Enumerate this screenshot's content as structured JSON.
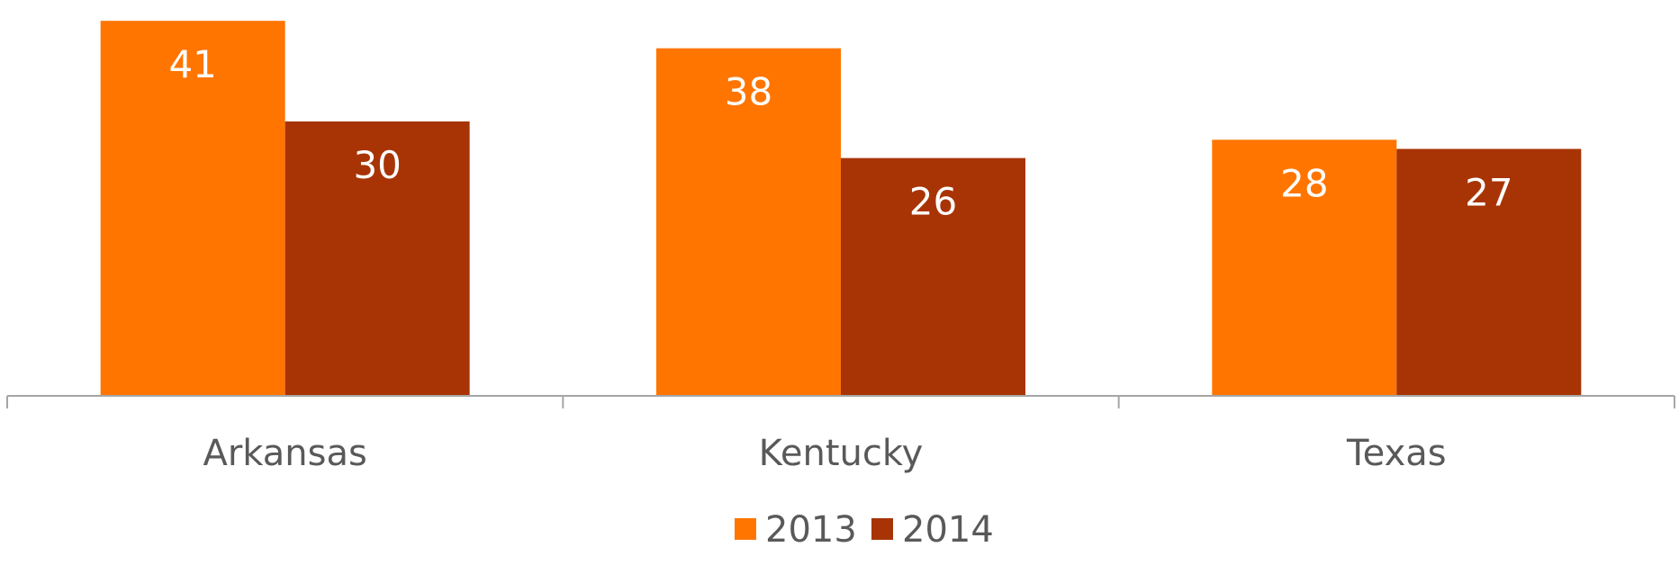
{
  "chart_data": {
    "type": "bar",
    "categories": [
      "Arkansas",
      "Kentucky",
      "Texas"
    ],
    "series": [
      {
        "name": "2013",
        "values": [
          41,
          38,
          28
        ],
        "color": "#ff7500"
      },
      {
        "name": "2014",
        "values": [
          30,
          26,
          27
        ],
        "color": "#a83405"
      }
    ],
    "ylim": [
      0,
      42
    ],
    "legend_position": "bottom",
    "grid": false,
    "axis_color": "#a6a6a6",
    "text_color": "#595959"
  }
}
